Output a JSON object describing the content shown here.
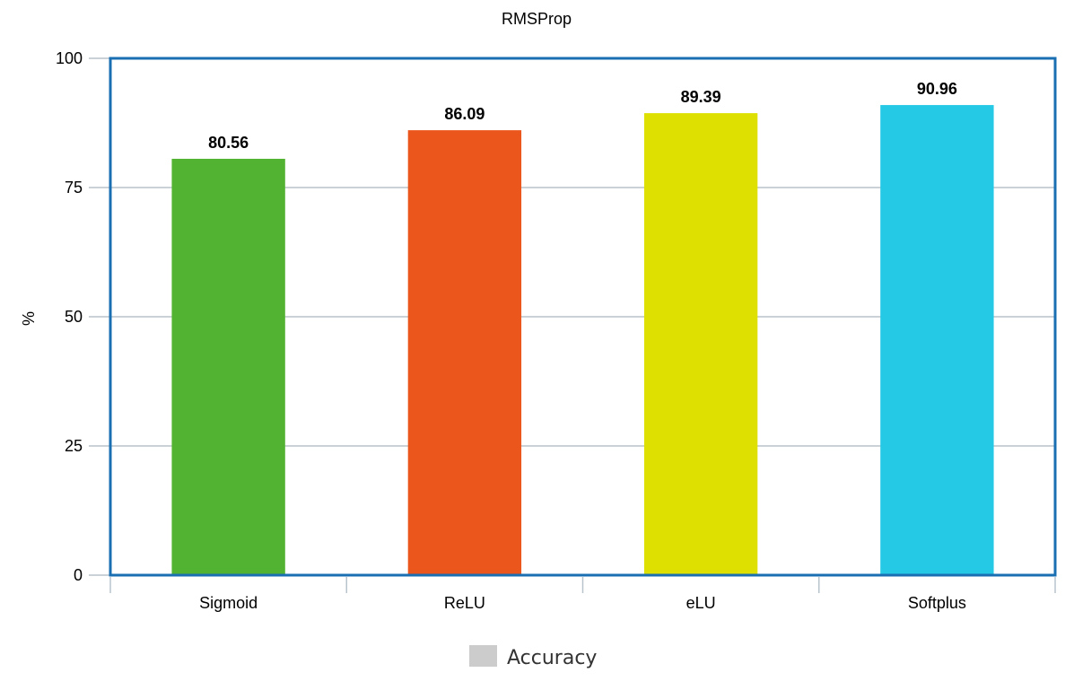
{
  "chart_data": {
    "type": "bar",
    "title": "RMSProp",
    "xlabel": "",
    "ylabel": "%",
    "categories": [
      "Sigmoid",
      "ReLU",
      "eLU",
      "Softplus"
    ],
    "series": [
      {
        "name": "Accuracy",
        "values": [
          80.56,
          86.09,
          89.39,
          90.96
        ],
        "data_labels": [
          "80.56",
          "86.09",
          "89.39",
          "90.96"
        ],
        "colors": [
          "#52b232",
          "#eb561c",
          "#dde000",
          "#25c9e5"
        ]
      }
    ],
    "ylim": [
      0,
      100
    ],
    "yticks": [
      0,
      25,
      50,
      75,
      100
    ],
    "ytick_labels": [
      "0",
      "25",
      "50",
      "75",
      "100"
    ],
    "grid": true,
    "legend": {
      "position": "bottom",
      "swatch_color": "#cccccc"
    },
    "frame_color": "#1a6fb3",
    "grid_color": "#b8c4cc"
  }
}
